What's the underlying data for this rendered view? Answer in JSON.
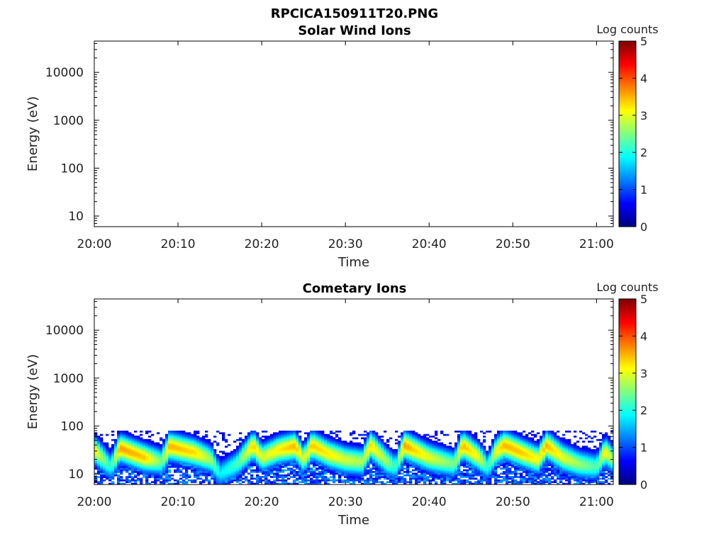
{
  "figure": {
    "title": "RPCICA150911T20.PNG"
  },
  "chart_data": [
    {
      "type": "heatmap",
      "title": "Solar Wind Ions",
      "xlabel": "Time",
      "ylabel": "Energy (eV)",
      "x_ticks": [
        "20:00",
        "20:10",
        "20:20",
        "20:30",
        "20:40",
        "20:50",
        "21:00"
      ],
      "x_range": [
        "20:00",
        "21:02"
      ],
      "y_scale": "log",
      "y_ticks": [
        10,
        100,
        1000,
        10000
      ],
      "y_tick_labels": [
        "10",
        "100",
        "1000",
        "10000"
      ],
      "y_range": [
        6,
        45000
      ],
      "colorbar": {
        "label": "Log counts",
        "range": [
          0,
          5
        ],
        "ticks": [
          "0",
          "1",
          "2",
          "3",
          "4",
          "5"
        ]
      },
      "series": []
    },
    {
      "type": "heatmap",
      "title": "Cometary Ions",
      "xlabel": "Time",
      "ylabel": "Energy (eV)",
      "x_ticks": [
        "20:00",
        "20:10",
        "20:20",
        "20:30",
        "20:40",
        "20:50",
        "21:00"
      ],
      "x_range": [
        "20:00",
        "21:02"
      ],
      "y_scale": "log",
      "y_ticks": [
        10,
        100,
        1000,
        10000
      ],
      "y_tick_labels": [
        "10",
        "100",
        "1000",
        "10000"
      ],
      "y_range": [
        6,
        45000
      ],
      "colorbar": {
        "label": "Log counts",
        "range": [
          0,
          5
        ],
        "ticks": [
          "0",
          "1",
          "2",
          "3",
          "4",
          "5"
        ]
      },
      "noise_ceiling_ev": 80,
      "peak_energy_ev": [
        {
          "t": "20:00",
          "e": 32,
          "level": 3.2
        },
        {
          "t": "20:02",
          "e": 14,
          "level": 2.0
        },
        {
          "t": "20:03",
          "e": 35,
          "level": 3.6
        },
        {
          "t": "20:06",
          "e": 22,
          "level": 3.4
        },
        {
          "t": "20:08",
          "e": 18,
          "level": 2.4
        },
        {
          "t": "20:09",
          "e": 38,
          "level": 3.5
        },
        {
          "t": "20:12",
          "e": 28,
          "level": 3.3
        },
        {
          "t": "20:14",
          "e": 20,
          "level": 2.6
        },
        {
          "t": "20:15",
          "e": 10,
          "level": 1.8
        },
        {
          "t": "20:17",
          "e": 16,
          "level": 2.2
        },
        {
          "t": "20:19",
          "e": 40,
          "level": 3.4
        },
        {
          "t": "20:20",
          "e": 22,
          "level": 2.9
        },
        {
          "t": "20:22",
          "e": 32,
          "level": 3.2
        },
        {
          "t": "20:24",
          "e": 38,
          "level": 3.5
        },
        {
          "t": "20:25",
          "e": 20,
          "level": 2.8
        },
        {
          "t": "20:26",
          "e": 40,
          "level": 3.4
        },
        {
          "t": "20:28",
          "e": 26,
          "level": 3.2
        },
        {
          "t": "20:30",
          "e": 20,
          "level": 2.9
        },
        {
          "t": "20:32",
          "e": 18,
          "level": 2.7
        },
        {
          "t": "20:33",
          "e": 40,
          "level": 3.3
        },
        {
          "t": "20:35",
          "e": 18,
          "level": 2.6
        },
        {
          "t": "20:36",
          "e": 14,
          "level": 2.0
        },
        {
          "t": "20:37",
          "e": 40,
          "level": 3.6
        },
        {
          "t": "20:40",
          "e": 22,
          "level": 3.0
        },
        {
          "t": "20:43",
          "e": 16,
          "level": 2.4
        },
        {
          "t": "20:44",
          "e": 40,
          "level": 3.5
        },
        {
          "t": "20:46",
          "e": 22,
          "level": 3.0
        },
        {
          "t": "20:47",
          "e": 14,
          "level": 2.0
        },
        {
          "t": "20:48",
          "e": 30,
          "level": 3.1
        },
        {
          "t": "20:49",
          "e": 40,
          "level": 3.5
        },
        {
          "t": "20:51",
          "e": 28,
          "level": 3.4
        },
        {
          "t": "20:53",
          "e": 20,
          "level": 3.1
        },
        {
          "t": "20:54",
          "e": 40,
          "level": 3.5
        },
        {
          "t": "20:56",
          "e": 22,
          "level": 3.0
        },
        {
          "t": "20:58",
          "e": 16,
          "level": 2.6
        },
        {
          "t": "21:00",
          "e": 14,
          "level": 2.2
        },
        {
          "t": "21:01",
          "e": 30,
          "level": 3.2
        },
        {
          "t": "21:02",
          "e": 20,
          "level": 2.6
        }
      ]
    }
  ]
}
